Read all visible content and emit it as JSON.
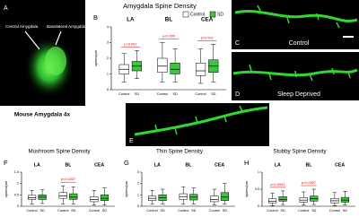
{
  "panels": {
    "A": {
      "letter": "A",
      "labels": [
        "Central Amygdala",
        "Basolateral Amygdala"
      ],
      "caption": "Mouse Amygdala 4x"
    },
    "C": {
      "letter": "C",
      "label": "Control"
    },
    "D": {
      "letter": "D",
      "label": "Sleep Deprived"
    },
    "E": {
      "letter": "E"
    }
  },
  "chart_data": [
    {
      "type": "box",
      "panel": "B",
      "title": "Amygdala Spine Density",
      "y_label": "spines/µm",
      "legend": true,
      "categories": [
        "LA",
        "BL",
        "CEA"
      ],
      "ylim": [
        0,
        4
      ],
      "yticks": [
        0,
        1,
        2,
        3,
        4
      ],
      "series": [
        {
          "name": "Control",
          "color": "#ffffff",
          "values": [
            [
              0.5,
              1.0,
              1.3,
              1.6,
              2.3
            ],
            [
              0.5,
              1.1,
              1.5,
              2.0,
              3.0
            ],
            [
              0.4,
              0.9,
              1.2,
              1.7,
              2.6
            ]
          ]
        },
        {
          "name": "SD",
          "color": "#3ec43e",
          "values": [
            [
              0.7,
              1.2,
              1.5,
              1.8,
              2.5
            ],
            [
              0.5,
              1.0,
              1.3,
              1.7,
              2.6
            ],
            [
              0.5,
              1.1,
              1.5,
              1.9,
              2.9
            ]
          ]
        }
      ],
      "annotations": [
        {
          "text": "p<0.001",
          "category": "LA"
        },
        {
          "text": "p<0.005",
          "category": "BL"
        },
        {
          "text": "p<0.001",
          "category": "CEA"
        }
      ]
    },
    {
      "type": "box",
      "panel": "F",
      "title": "Mushroom Spine Density",
      "y_label": "spines/µm",
      "legend": false,
      "categories": [
        "LA",
        "BL",
        "CEA"
      ],
      "ylim": [
        0,
        1.5
      ],
      "yticks": [
        0,
        0.5,
        1,
        1.5
      ],
      "series": [
        {
          "name": "Control",
          "color": "#ffffff",
          "values": [
            [
              0.1,
              0.3,
              0.38,
              0.48,
              0.7
            ],
            [
              0.1,
              0.35,
              0.45,
              0.6,
              0.9
            ],
            [
              0.05,
              0.2,
              0.3,
              0.42,
              0.7
            ]
          ]
        },
        {
          "name": "SD",
          "color": "#3ec43e",
          "values": [
            [
              0.12,
              0.3,
              0.4,
              0.5,
              0.72
            ],
            [
              0.1,
              0.3,
              0.4,
              0.55,
              0.85
            ],
            [
              0.05,
              0.25,
              0.35,
              0.5,
              0.8
            ]
          ]
        }
      ],
      "annotations": [
        {
          "text": "p<0.0007",
          "category": "BL"
        }
      ]
    },
    {
      "type": "box",
      "panel": "G",
      "title": "Thin Spine Density",
      "y_label": "spines/µm",
      "legend": false,
      "categories": [
        "LA",
        "BL",
        "CEA"
      ],
      "ylim": [
        0,
        3
      ],
      "yticks": [
        0,
        1,
        2,
        3
      ],
      "series": [
        {
          "name": "Control",
          "color": "#ffffff",
          "values": [
            [
              0.2,
              0.5,
              0.7,
              0.9,
              1.4
            ],
            [
              0.2,
              0.6,
              0.85,
              1.1,
              1.7
            ],
            [
              0.1,
              0.4,
              0.6,
              0.9,
              1.5
            ]
          ]
        },
        {
          "name": "SD",
          "color": "#3ec43e",
          "values": [
            [
              0.2,
              0.5,
              0.75,
              1.0,
              1.5
            ],
            [
              0.2,
              0.55,
              0.8,
              1.05,
              1.6
            ],
            [
              0.2,
              0.5,
              0.8,
              1.2,
              2.0
            ]
          ]
        }
      ],
      "annotations": []
    },
    {
      "type": "box",
      "panel": "H",
      "title": "Stubby Spine Density",
      "y_label": "spines/µm",
      "legend": false,
      "categories": [
        "LA",
        "BL",
        "CEA"
      ],
      "ylim": [
        0,
        1
      ],
      "yticks": [
        0,
        0.5,
        1
      ],
      "series": [
        {
          "name": "Control",
          "color": "#ffffff",
          "values": [
            [
              0.02,
              0.1,
              0.15,
              0.22,
              0.38
            ],
            [
              0.03,
              0.12,
              0.18,
              0.25,
              0.42
            ],
            [
              0.02,
              0.1,
              0.16,
              0.23,
              0.4
            ]
          ]
        },
        {
          "name": "SD",
          "color": "#3ec43e",
          "values": [
            [
              0.05,
              0.15,
              0.2,
              0.28,
              0.45
            ],
            [
              0.05,
              0.15,
              0.22,
              0.3,
              0.5
            ],
            [
              0.04,
              0.12,
              0.18,
              0.26,
              0.44
            ]
          ]
        }
      ],
      "annotations": [
        {
          "text": "p<0.0001",
          "category": "LA"
        },
        {
          "text": "p<0.0007",
          "category": "BL"
        }
      ]
    }
  ]
}
